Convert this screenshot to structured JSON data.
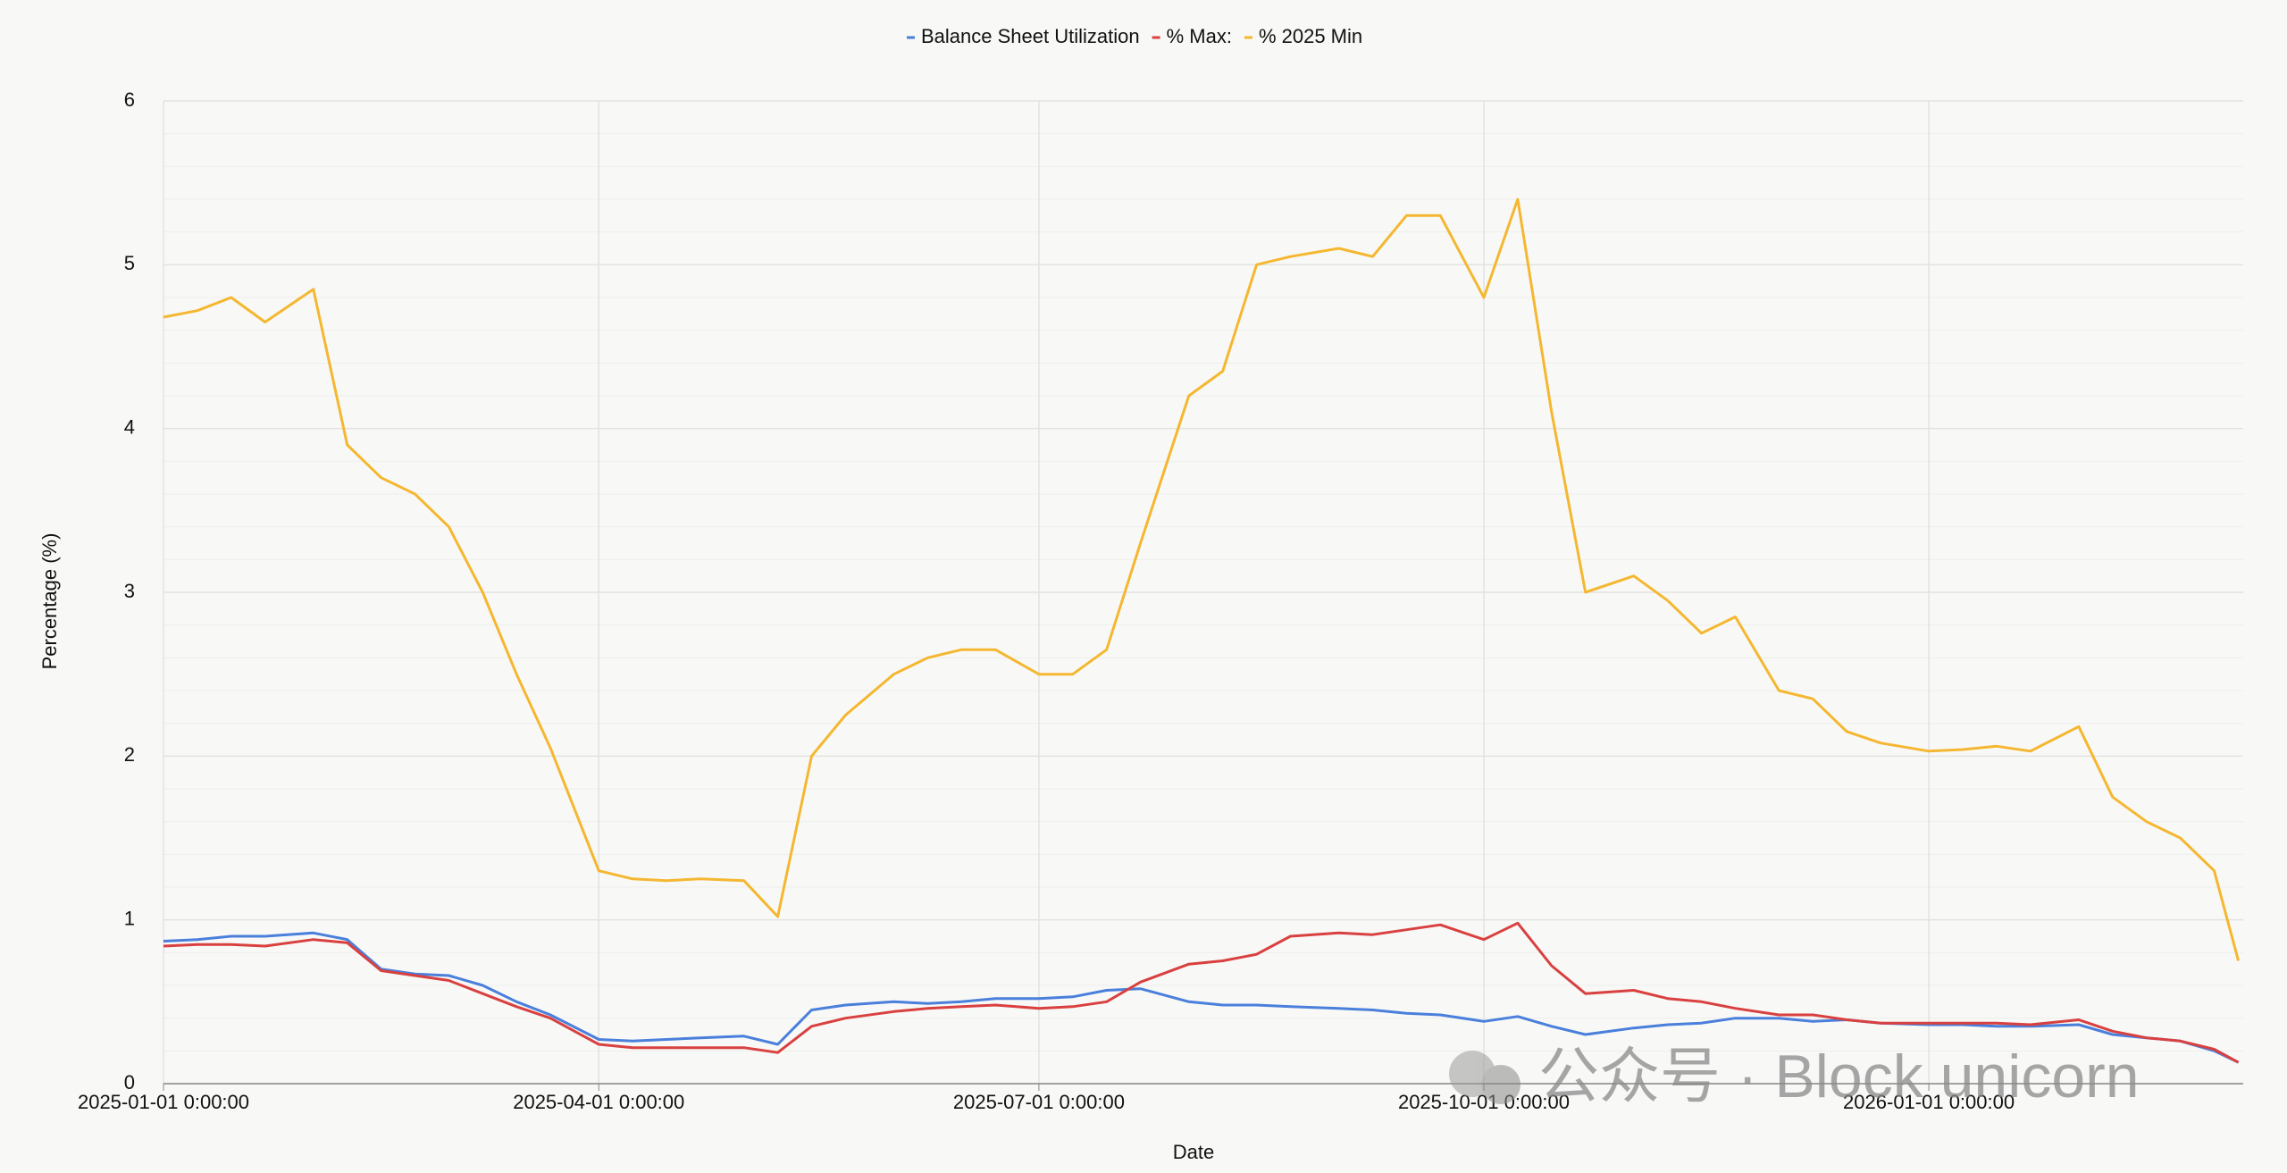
{
  "chart_data": {
    "type": "line",
    "x_label": "Date",
    "y_label": "Percentage (%)",
    "watermark": "公众号 · Block unicorn",
    "x": [
      "2025-01-01",
      "2025-01-08",
      "2025-01-15",
      "2025-01-22",
      "2025-02-01",
      "2025-02-08",
      "2025-02-15",
      "2025-02-22",
      "2025-03-01",
      "2025-03-08",
      "2025-03-15",
      "2025-03-22",
      "2025-04-01",
      "2025-04-08",
      "2025-04-15",
      "2025-04-22",
      "2025-05-01",
      "2025-05-08",
      "2025-05-15",
      "2025-05-22",
      "2025-06-01",
      "2025-06-08",
      "2025-06-15",
      "2025-06-22",
      "2025-07-01",
      "2025-07-08",
      "2025-07-15",
      "2025-07-22",
      "2025-08-01",
      "2025-08-08",
      "2025-08-15",
      "2025-08-22",
      "2025-09-01",
      "2025-09-08",
      "2025-09-15",
      "2025-09-22",
      "2025-10-01",
      "2025-10-08",
      "2025-10-15",
      "2025-10-22",
      "2025-11-01",
      "2025-11-08",
      "2025-11-15",
      "2025-11-22",
      "2025-12-01",
      "2025-12-08",
      "2025-12-15",
      "2025-12-22",
      "2026-01-01",
      "2026-01-08",
      "2026-01-15",
      "2026-01-22",
      "2026-02-01",
      "2026-02-08",
      "2026-02-15",
      "2026-02-22",
      "2026-03-01",
      "2026-03-06"
    ],
    "series": [
      {
        "name": "Balance Sheet Utilization",
        "color": "#4a7fdc",
        "values": [
          0.87,
          0.88,
          0.9,
          0.9,
          0.92,
          0.88,
          0.7,
          0.67,
          0.66,
          0.6,
          0.5,
          0.42,
          0.27,
          0.26,
          0.27,
          0.28,
          0.29,
          0.24,
          0.45,
          0.48,
          0.5,
          0.49,
          0.5,
          0.52,
          0.52,
          0.53,
          0.57,
          0.58,
          0.5,
          0.48,
          0.48,
          0.47,
          0.46,
          0.45,
          0.43,
          0.42,
          0.38,
          0.41,
          0.35,
          0.3,
          0.34,
          0.36,
          0.37,
          0.4,
          0.4,
          0.38,
          0.39,
          0.37,
          0.36,
          0.36,
          0.35,
          0.35,
          0.36,
          0.3,
          0.28,
          0.26,
          0.2,
          0.13
        ]
      },
      {
        "name": "% Max:",
        "color": "#d94040",
        "values": [
          0.84,
          0.85,
          0.85,
          0.84,
          0.88,
          0.86,
          0.69,
          0.66,
          0.63,
          0.55,
          0.47,
          0.4,
          0.24,
          0.22,
          0.22,
          0.22,
          0.22,
          0.19,
          0.35,
          0.4,
          0.44,
          0.46,
          0.47,
          0.48,
          0.46,
          0.47,
          0.5,
          0.62,
          0.73,
          0.75,
          0.79,
          0.9,
          0.92,
          0.91,
          0.94,
          0.97,
          0.88,
          0.98,
          0.72,
          0.55,
          0.57,
          0.52,
          0.5,
          0.46,
          0.42,
          0.42,
          0.39,
          0.37,
          0.37,
          0.37,
          0.37,
          0.36,
          0.39,
          0.32,
          0.28,
          0.26,
          0.21,
          0.13
        ]
      },
      {
        "name": "% 2025 Min",
        "color": "#f5b731",
        "values": [
          4.68,
          4.72,
          4.8,
          4.65,
          4.85,
          3.9,
          3.7,
          3.6,
          3.4,
          3.0,
          2.5,
          2.05,
          1.3,
          1.25,
          1.24,
          1.25,
          1.24,
          1.02,
          2.0,
          2.25,
          2.5,
          2.6,
          2.65,
          2.65,
          2.5,
          2.5,
          2.65,
          3.3,
          4.2,
          4.35,
          5.0,
          5.05,
          5.1,
          5.05,
          5.3,
          5.3,
          4.8,
          5.4,
          4.1,
          3.0,
          3.1,
          2.95,
          2.75,
          2.85,
          2.4,
          2.35,
          2.15,
          2.08,
          2.03,
          2.04,
          2.06,
          2.03,
          2.18,
          1.75,
          1.6,
          1.5,
          1.3,
          0.75
        ]
      }
    ],
    "xlim": [
      "2025-01-01",
      "2026-03-07"
    ],
    "xticks": [
      {
        "value": "2025-01-01",
        "label": "2025-01-01 0:00:00"
      },
      {
        "value": "2025-04-01",
        "label": "2025-04-01 0:00:00"
      },
      {
        "value": "2025-07-01",
        "label": "2025-07-01 0:00:00"
      },
      {
        "value": "2025-10-01",
        "label": "2025-10-01 0:00:00"
      },
      {
        "value": "2026-01-01",
        "label": "2026-01-01 0:00:00"
      }
    ],
    "ylim": [
      0,
      6
    ],
    "yticks": [
      0,
      1,
      2,
      3,
      4,
      5,
      6
    ],
    "grid": true,
    "legend": "top"
  }
}
